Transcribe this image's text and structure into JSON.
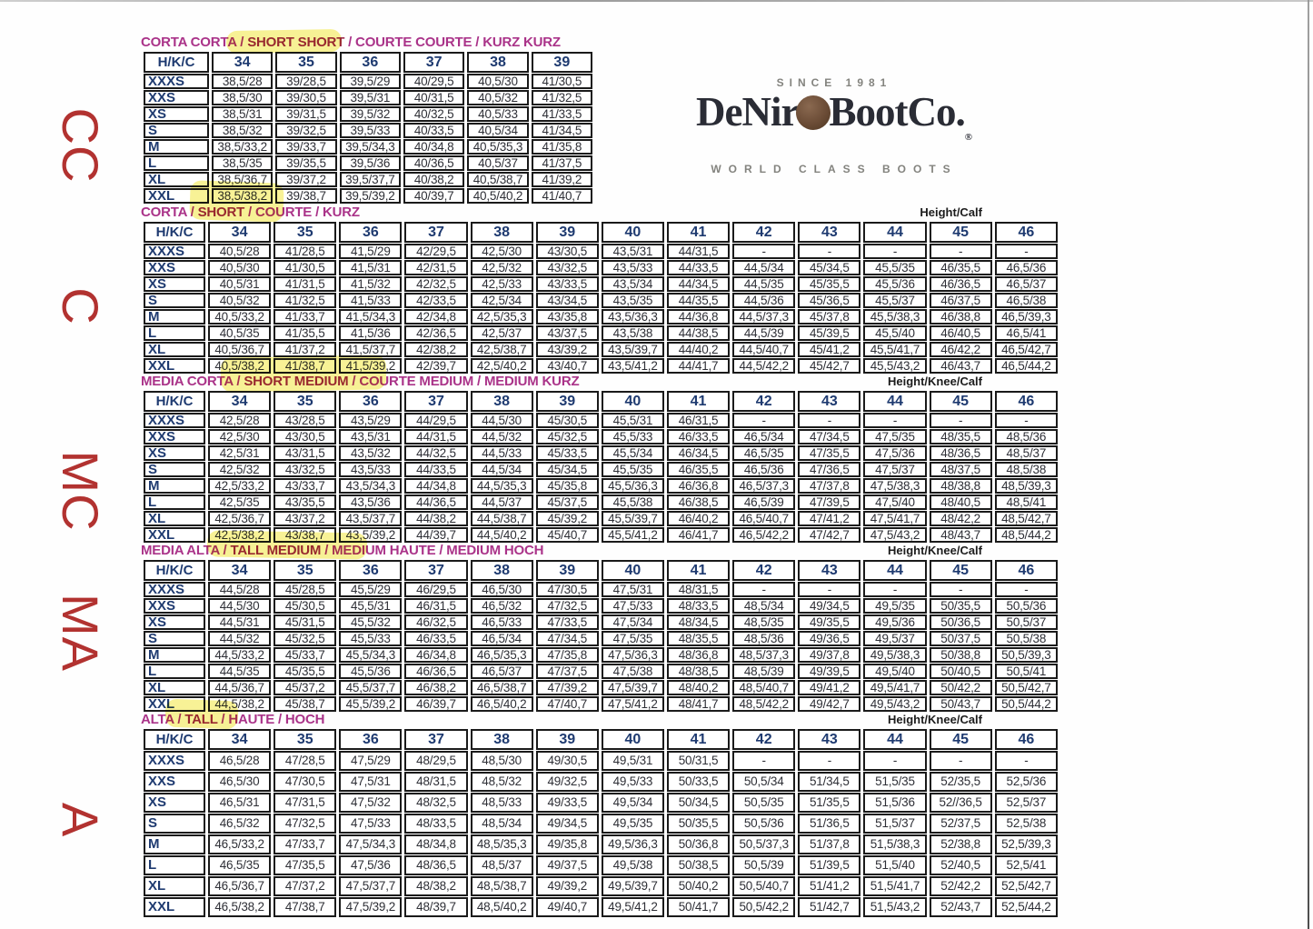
{
  "logo": {
    "since": "SINCE 1981",
    "brand_left": "DeNir",
    "brand_right": "BootCo.",
    "registered_mark": "®",
    "tagline": "WORLD CLASS BOOTS"
  },
  "side_codes": [
    "CC",
    "C",
    "MC",
    "MA",
    "A"
  ],
  "colors": {
    "title-magenta": "#aa3389",
    "title-red": "#9c2a4d",
    "header-navy": "#1e3a70",
    "cell-text": "#2e2f36",
    "code-red": "#b23230",
    "highlight-yellow": "#f6ee73",
    "border-black": "#1a1a1a"
  },
  "tables": [
    {
      "code": "CC",
      "title": [
        {
          "text": "CORTA CORTA / ",
          "style": "m"
        },
        {
          "text": "SHORT SHORT",
          "style": "r"
        },
        {
          "text": " / COURTE COURTE / KURZ KURZ",
          "style": "m"
        }
      ],
      "measure_label": "",
      "corner": "H/K/C",
      "columns": [
        "34",
        "35",
        "36",
        "37",
        "38",
        "39"
      ],
      "rows": [
        {
          "label": "XXXS",
          "values": [
            "38,5/28",
            "39/28,5",
            "39,5/29",
            "40/29,5",
            "40,5/30",
            "41/30,5"
          ]
        },
        {
          "label": "XXS",
          "values": [
            "38,5/30",
            "39/30,5",
            "39,5/31",
            "40/31,5",
            "40,5/32",
            "41/32,5"
          ]
        },
        {
          "label": "XS",
          "values": [
            "38,5/31",
            "39/31,5",
            "39,5/32",
            "40/32,5",
            "40,5/33",
            "41/33,5"
          ]
        },
        {
          "label": "S",
          "values": [
            "38,5/32",
            "39/32,5",
            "39,5/33",
            "40/33,5",
            "40,5/34",
            "41/34,5"
          ]
        },
        {
          "label": "M",
          "values": [
            "38,5/33,2",
            "39/33,7",
            "39,5/34,3",
            "40/34,8",
            "40,5/35,3",
            "41/35,8"
          ]
        },
        {
          "label": "L",
          "values": [
            "38,5/35",
            "39/35,5",
            "39,5/36",
            "40/36,5",
            "40,5/37",
            "41/37,5"
          ]
        },
        {
          "label": "XL",
          "values": [
            "38,5/36,7",
            "39/37,2",
            "39,5/37,7",
            "40/38,2",
            "40,5/38,7",
            "41/39,2"
          ]
        },
        {
          "label": "XXL",
          "values": [
            "38,5/38,2",
            "39/38,7",
            "39,5/39,2",
            "40/39,7",
            "40,5/40,2",
            "41/40,7"
          ]
        }
      ]
    },
    {
      "code": "C",
      "title": [
        {
          "text": "CORTA / ",
          "style": "m"
        },
        {
          "text": "SHORT",
          "style": "r"
        },
        {
          "text": " / COURTE / KURZ",
          "style": "m"
        }
      ],
      "measure_label": "Height/Calf",
      "corner": "H/K/C",
      "columns": [
        "34",
        "35",
        "36",
        "37",
        "38",
        "39",
        "40",
        "41",
        "42",
        "43",
        "44",
        "45",
        "46"
      ],
      "rows": [
        {
          "label": "XXXS",
          "values": [
            "40,5/28",
            "41/28,5",
            "41,5/29",
            "42/29,5",
            "42,5/30",
            "43/30,5",
            "43,5/31",
            "44/31,5",
            "-",
            "-",
            "-",
            "-",
            "-"
          ]
        },
        {
          "label": "XXS",
          "values": [
            "40,5/30",
            "41/30,5",
            "41,5/31",
            "42/31,5",
            "42,5/32",
            "43/32,5",
            "43,5/33",
            "44/33,5",
            "44,5/34",
            "45/34,5",
            "45,5/35",
            "46/35,5",
            "46,5/36"
          ]
        },
        {
          "label": "XS",
          "values": [
            "40,5/31",
            "41/31,5",
            "41,5/32",
            "42/32,5",
            "42,5/33",
            "43/33,5",
            "43,5/34",
            "44/34,5",
            "44,5/35",
            "45/35,5",
            "45,5/36",
            "46/36,5",
            "46,5/37"
          ]
        },
        {
          "label": "S",
          "values": [
            "40,5/32",
            "41/32,5",
            "41,5/33",
            "42/33,5",
            "42,5/34",
            "43/34,5",
            "43,5/35",
            "44/35,5",
            "44,5/36",
            "45/36,5",
            "45,5/37",
            "46/37,5",
            "46,5/38"
          ]
        },
        {
          "label": "M",
          "values": [
            "40,5/33,2",
            "41/33,7",
            "41,5/34,3",
            "42/34,8",
            "42,5/35,3",
            "43/35,8",
            "43,5/36,3",
            "44/36,8",
            "44,5/37,3",
            "45/37,8",
            "45,5/38,3",
            "46/38,8",
            "46,5/39,3"
          ]
        },
        {
          "label": "L",
          "values": [
            "40,5/35",
            "41/35,5",
            "41,5/36",
            "42/36,5",
            "42,5/37",
            "43/37,5",
            "43,5/38",
            "44/38,5",
            "44,5/39",
            "45/39,5",
            "45,5/40",
            "46/40,5",
            "46,5/41"
          ]
        },
        {
          "label": "XL",
          "values": [
            "40,5/36,7",
            "41/37,2",
            "41,5/37,7",
            "42/38,2",
            "42,5/38,7",
            "43/39,2",
            "43,5/39,7",
            "44/40,2",
            "44,5/40,7",
            "45/41,2",
            "45,5/41,7",
            "46/42,2",
            "46,5/42,7"
          ]
        },
        {
          "label": "XXL",
          "values": [
            "40,5/38,2",
            "41/38,7",
            "41,5/39,2",
            "42/39,7",
            "42,5/40,2",
            "43/40,7",
            "43,5/41,2",
            "44/41,7",
            "44,5/42,2",
            "45/42,7",
            "45,5/43,2",
            "46/43,7",
            "46,5/44,2"
          ]
        }
      ]
    },
    {
      "code": "MC",
      "title": [
        {
          "text": "MEDIA CORTA / ",
          "style": "m"
        },
        {
          "text": "SHORT MEDIUM",
          "style": "r"
        },
        {
          "text": " / COURTE MEDIUM / MEDIUM KURZ",
          "style": "m"
        }
      ],
      "measure_label": "Height/Knee/Calf",
      "corner": "H/K/C",
      "columns": [
        "34",
        "35",
        "36",
        "37",
        "38",
        "39",
        "40",
        "41",
        "42",
        "43",
        "44",
        "45",
        "46"
      ],
      "rows": [
        {
          "label": "XXXS",
          "values": [
            "42,5/28",
            "43/28,5",
            "43,5/29",
            "44/29,5",
            "44,5/30",
            "45/30,5",
            "45,5/31",
            "46/31,5",
            "-",
            "-",
            "-",
            "-",
            "-"
          ]
        },
        {
          "label": "XXS",
          "values": [
            "42,5/30",
            "43/30,5",
            "43,5/31",
            "44/31,5",
            "44,5/32",
            "45/32,5",
            "45,5/33",
            "46/33,5",
            "46,5/34",
            "47/34,5",
            "47,5/35",
            "48/35,5",
            "48,5/36"
          ]
        },
        {
          "label": "XS",
          "values": [
            "42,5/31",
            "43/31,5",
            "43,5/32",
            "44/32,5",
            "44,5/33",
            "45/33,5",
            "45,5/34",
            "46/34,5",
            "46,5/35",
            "47/35,5",
            "47,5/36",
            "48/36,5",
            "48,5/37"
          ]
        },
        {
          "label": "S",
          "values": [
            "42,5/32",
            "43/32,5",
            "43,5/33",
            "44/33,5",
            "44,5/34",
            "45/34,5",
            "45,5/35",
            "46/35,5",
            "46,5/36",
            "47/36,5",
            "47,5/37",
            "48/37,5",
            "48,5/38"
          ]
        },
        {
          "label": "M",
          "values": [
            "42,5/33,2",
            "43/33,7",
            "43,5/34,3",
            "44/34,8",
            "44,5/35,3",
            "45/35,8",
            "45,5/36,3",
            "46/36,8",
            "46,5/37,3",
            "47/37,8",
            "47,5/38,3",
            "48/38,8",
            "48,5/39,3"
          ]
        },
        {
          "label": "L",
          "values": [
            "42,5/35",
            "43/35,5",
            "43,5/36",
            "44/36,5",
            "44,5/37",
            "45/37,5",
            "45,5/38",
            "46/38,5",
            "46,5/39",
            "47/39,5",
            "47,5/40",
            "48/40,5",
            "48,5/41"
          ]
        },
        {
          "label": "XL",
          "values": [
            "42,5/36,7",
            "43/37,2",
            "43,5/37,7",
            "44/38,2",
            "44,5/38,7",
            "45/39,2",
            "45,5/39,7",
            "46/40,2",
            "46,5/40,7",
            "47/41,2",
            "47,5/41,7",
            "48/42,2",
            "48,5/42,7"
          ]
        },
        {
          "label": "XXL",
          "values": [
            "42,5/38,2",
            "43/38,7",
            "43,5/39,2",
            "44/39,7",
            "44,5/40,2",
            "45/40,7",
            "45,5/41,2",
            "46/41,7",
            "46,5/42,2",
            "47/42,7",
            "47,5/43,2",
            "48/43,7",
            "48,5/44,2"
          ]
        }
      ]
    },
    {
      "code": "MA",
      "title": [
        {
          "text": "MEDIA ALTA / ",
          "style": "m"
        },
        {
          "text": "TALL MEDIUM",
          "style": "r"
        },
        {
          "text": " / MEDIUM HAUTE / MEDIUM HOCH",
          "style": "m"
        }
      ],
      "measure_label": "Height/Knee/Calf",
      "corner": "H/K/C",
      "columns": [
        "34",
        "35",
        "36",
        "37",
        "38",
        "39",
        "40",
        "41",
        "42",
        "43",
        "44",
        "45",
        "46"
      ],
      "rows": [
        {
          "label": "XXXS",
          "values": [
            "44,5/28",
            "45/28,5",
            "45,5/29",
            "46/29,5",
            "46,5/30",
            "47/30,5",
            "47,5/31",
            "48/31,5",
            "-",
            "-",
            "-",
            "-",
            "-"
          ]
        },
        {
          "label": "XXS",
          "values": [
            "44,5/30",
            "45/30,5",
            "45,5/31",
            "46/31,5",
            "46,5/32",
            "47/32,5",
            "47,5/33",
            "48/33,5",
            "48,5/34",
            "49/34,5",
            "49,5/35",
            "50/35,5",
            "50,5/36"
          ]
        },
        {
          "label": "XS",
          "values": [
            "44,5/31",
            "45/31,5",
            "45,5/32",
            "46/32,5",
            "46,5/33",
            "47/33,5",
            "47,5/34",
            "48/34,5",
            "48,5/35",
            "49/35,5",
            "49,5/36",
            "50/36,5",
            "50,5/37"
          ]
        },
        {
          "label": "S",
          "values": [
            "44,5/32",
            "45/32,5",
            "45,5/33",
            "46/33,5",
            "46,5/34",
            "47/34,5",
            "47,5/35",
            "48/35,5",
            "48,5/36",
            "49/36,5",
            "49,5/37",
            "50/37,5",
            "50,5/38"
          ]
        },
        {
          "label": "M",
          "values": [
            "44,5/33,2",
            "45/33,7",
            "45,5/34,3",
            "46/34,8",
            "46,5/35,3",
            "47/35,8",
            "47,5/36,3",
            "48/36,8",
            "48,5/37,3",
            "49/37,8",
            "49,5/38,3",
            "50/38,8",
            "50,5/39,3"
          ]
        },
        {
          "label": "L",
          "values": [
            "44,5/35",
            "45/35,5",
            "45,5/36",
            "46/36,5",
            "46,5/37",
            "47/37,5",
            "47,5/38",
            "48/38,5",
            "48,5/39",
            "49/39,5",
            "49,5/40",
            "50/40,5",
            "50,5/41"
          ]
        },
        {
          "label": "XL",
          "values": [
            "44,5/36,7",
            "45/37,2",
            "45,5/37,7",
            "46/38,2",
            "46,5/38,7",
            "47/39,2",
            "47,5/39,7",
            "48/40,2",
            "48,5/40,7",
            "49/41,2",
            "49,5/41,7",
            "50/42,2",
            "50,5/42,7"
          ]
        },
        {
          "label": "XXL",
          "values": [
            "44,5/38,2",
            "45/38,7",
            "45,5/39,2",
            "46/39,7",
            "46,5/40,2",
            "47/40,7",
            "47,5/41,2",
            "48/41,7",
            "48,5/42,2",
            "49/42,7",
            "49,5/43,2",
            "50/43,7",
            "50,5/44,2"
          ]
        }
      ]
    },
    {
      "code": "A",
      "title": [
        {
          "text": "ALTA / ",
          "style": "m"
        },
        {
          "text": "TALL",
          "style": "r"
        },
        {
          "text": " / HAUTE / HOCH",
          "style": "m"
        }
      ],
      "measure_label": "Height/Knee/Calf",
      "corner": "H/K/C",
      "columns": [
        "34",
        "35",
        "36",
        "37",
        "38",
        "39",
        "40",
        "41",
        "42",
        "43",
        "44",
        "45",
        "46"
      ],
      "rows": [
        {
          "label": "XXXS",
          "values": [
            "46,5/28",
            "47/28,5",
            "47,5/29",
            "48/29,5",
            "48,5/30",
            "49/30,5",
            "49,5/31",
            "50/31,5",
            "-",
            "-",
            "-",
            "-",
            "-"
          ]
        },
        {
          "label": "XXS",
          "values": [
            "46,5/30",
            "47/30,5",
            "47,5/31",
            "48/31,5",
            "48,5/32",
            "49/32,5",
            "49,5/33",
            "50/33,5",
            "50,5/34",
            "51/34,5",
            "51,5/35",
            "52/35,5",
            "52,5/36"
          ]
        },
        {
          "label": "XS",
          "values": [
            "46,5/31",
            "47/31,5",
            "47,5/32",
            "48/32,5",
            "48,5/33",
            "49/33,5",
            "49,5/34",
            "50/34,5",
            "50,5/35",
            "51/35,5",
            "51,5/36",
            "52//36,5",
            "52,5/37"
          ]
        },
        {
          "label": "S",
          "values": [
            "46,5/32",
            "47/32,5",
            "47,5/33",
            "48/33,5",
            "48,5/34",
            "49/34,5",
            "49,5/35",
            "50/35,5",
            "50,5/36",
            "51/36,5",
            "51,5/37",
            "52/37,5",
            "52,5/38"
          ]
        },
        {
          "label": "M",
          "values": [
            "46,5/33,2",
            "47/33,7",
            "47,5/34,3",
            "48/34,8",
            "48,5/35,3",
            "49/35,8",
            "49,5/36,3",
            "50/36,8",
            "50,5/37,3",
            "51/37,8",
            "51,5/38,3",
            "52/38,8",
            "52,5/39,3"
          ]
        },
        {
          "label": "L",
          "values": [
            "46,5/35",
            "47/35,5",
            "47,5/36",
            "48/36,5",
            "48,5/37",
            "49/37,5",
            "49,5/38",
            "50/38,5",
            "50,5/39",
            "51/39,5",
            "51,5/40",
            "52/40,5",
            "52,5/41"
          ]
        },
        {
          "label": "XL",
          "values": [
            "46,5/36,7",
            "47/37,2",
            "47,5/37,7",
            "48/38,2",
            "48,5/38,7",
            "49/39,2",
            "49,5/39,7",
            "50/40,2",
            "50,5/40,7",
            "51/41,2",
            "51,5/41,7",
            "52/42,2",
            "52,5/42,7"
          ]
        },
        {
          "label": "XXL",
          "values": [
            "46,5/38,2",
            "47/38,7",
            "47,5/39,2",
            "48/39,7",
            "48,5/40,2",
            "49/40,7",
            "49,5/41,2",
            "50/41,7",
            "50,5/42,2",
            "51/42,7",
            "51,5/43,2",
            "52/43,7",
            "52,5/44,2"
          ]
        }
      ]
    }
  ]
}
